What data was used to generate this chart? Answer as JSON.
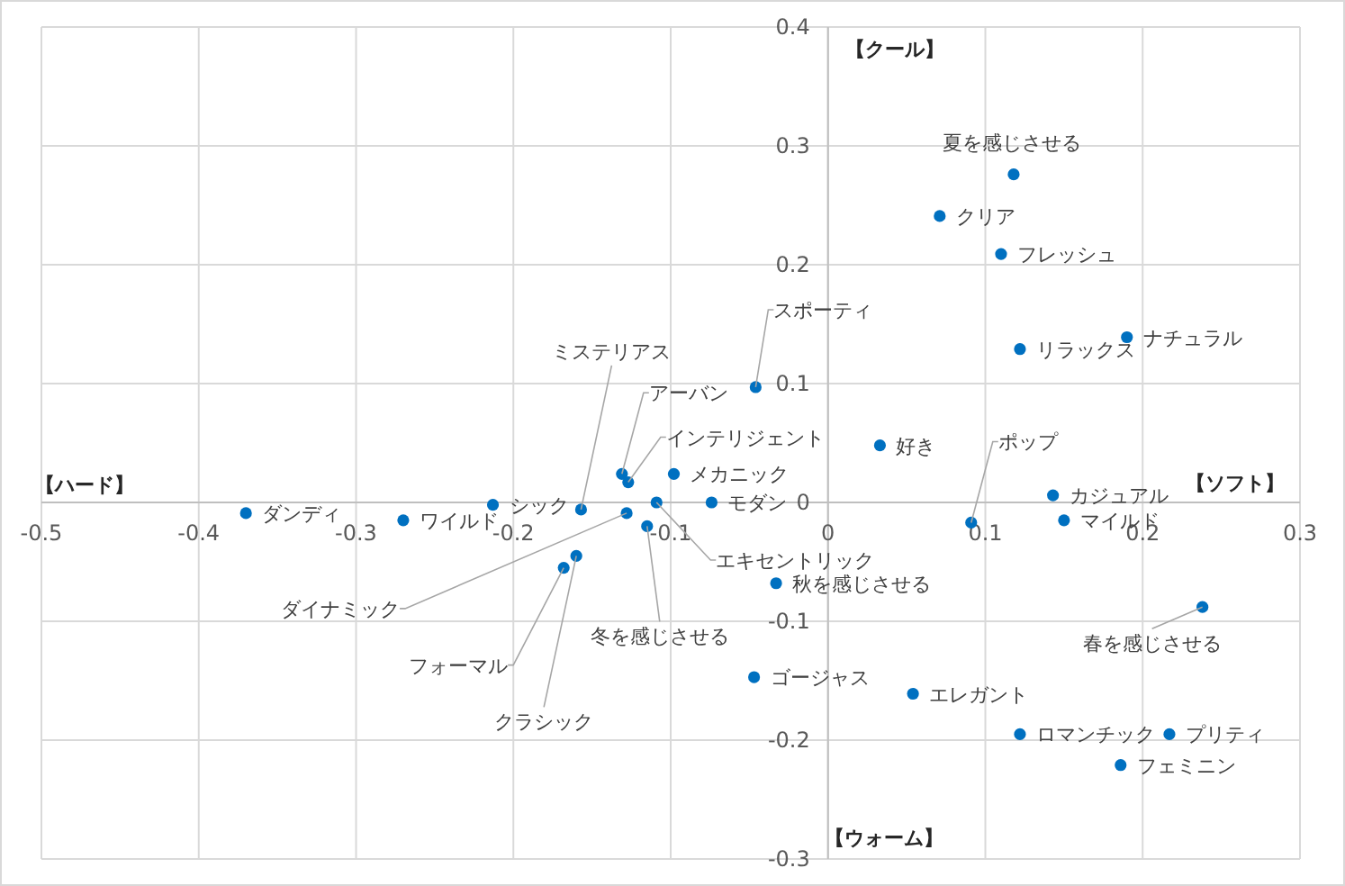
{
  "chart_data": {
    "type": "scatter",
    "x": [
      -0.37,
      -0.27,
      -0.213,
      -0.157,
      -0.131,
      -0.127,
      -0.098,
      -0.128,
      -0.109,
      -0.074,
      -0.115,
      -0.168,
      -0.16,
      -0.046,
      -0.033,
      -0.047,
      0.033,
      0.118,
      0.071,
      0.11,
      0.122,
      0.19,
      0.091,
      0.143,
      0.15,
      0.238,
      0.054,
      0.122,
      0.217,
      0.186
    ],
    "series": [
      {
        "color": "#0070c0",
        "values": [
          -0.009,
          -0.015,
          -0.002,
          -0.006,
          0.024,
          0.017,
          0.024,
          -0.009,
          0.0,
          0.0,
          -0.02,
          -0.055,
          -0.045,
          0.097,
          -0.068,
          -0.147,
          0.048,
          0.276,
          0.241,
          0.209,
          0.129,
          0.139,
          -0.017,
          0.006,
          -0.015,
          -0.088,
          -0.161,
          -0.195,
          -0.195,
          -0.221
        ],
        "value_labels": [
          "ダンディ",
          "ワイルド",
          "シック",
          "ミステリアス",
          "アーバン",
          "インテリジェント",
          "メカニック",
          "ダイナミック",
          "エキセントリック",
          "モダン",
          "冬を感じさせる",
          "フォーマル",
          "クラシック",
          "スポーティ",
          "秋を感じさせる",
          "ゴージャス",
          "好き",
          "夏を感じさせる",
          "クリア",
          "フレッシュ",
          "リラックス",
          "ナチュラル",
          "ポップ",
          "カジュアル",
          "マイルド",
          "春を感じさせる",
          "エレガント",
          "ロマンチック",
          "プリティ",
          "フェミニン"
        ]
      }
    ],
    "xlim": [
      -0.5,
      0.3
    ],
    "ylim": [
      -0.3,
      0.4
    ],
    "xticks": [
      -0.5,
      -0.4,
      -0.3,
      -0.2,
      -0.1,
      0,
      0.1,
      0.2,
      0.3
    ],
    "yticks": [
      -0.3,
      -0.2,
      -0.1,
      0,
      0.1,
      0.2,
      0.3,
      0.4
    ],
    "grid": true,
    "marker": "circle",
    "annotations": [
      "【クール】",
      "【ソフト】",
      "【ウォーム】",
      "【ハード】"
    ]
  }
}
